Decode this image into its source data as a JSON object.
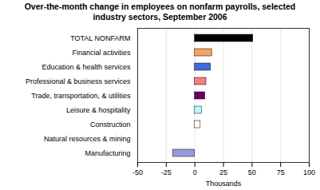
{
  "chart_data": {
    "type": "bar",
    "orientation": "horizontal",
    "title": "Over-the-month change in employees on nonfarm payrolls, selected\nindustry sectors, September 2006",
    "xlabel": "Thousands",
    "categories": [
      "TOTAL NONFARM",
      "Financial activities",
      "Education & health services",
      "Professional & business services",
      "Trade, transportation, & utilities",
      "Leisure & hospitality",
      "Construction",
      "Natural resources & mining",
      "Manufacturing"
    ],
    "values": [
      51,
      15,
      14,
      10,
      9,
      6,
      5,
      0,
      -19
    ],
    "colors": [
      "#000000",
      "#f4a460",
      "#4169e1",
      "#f08080",
      "#660066",
      "#afffff",
      "#fffff0",
      "#c8c8c8",
      "#9999dd"
    ],
    "xlim": [
      -50,
      100
    ],
    "xticks": [
      -50,
      -25,
      0,
      25,
      50,
      75,
      100
    ],
    "grid": true
  }
}
